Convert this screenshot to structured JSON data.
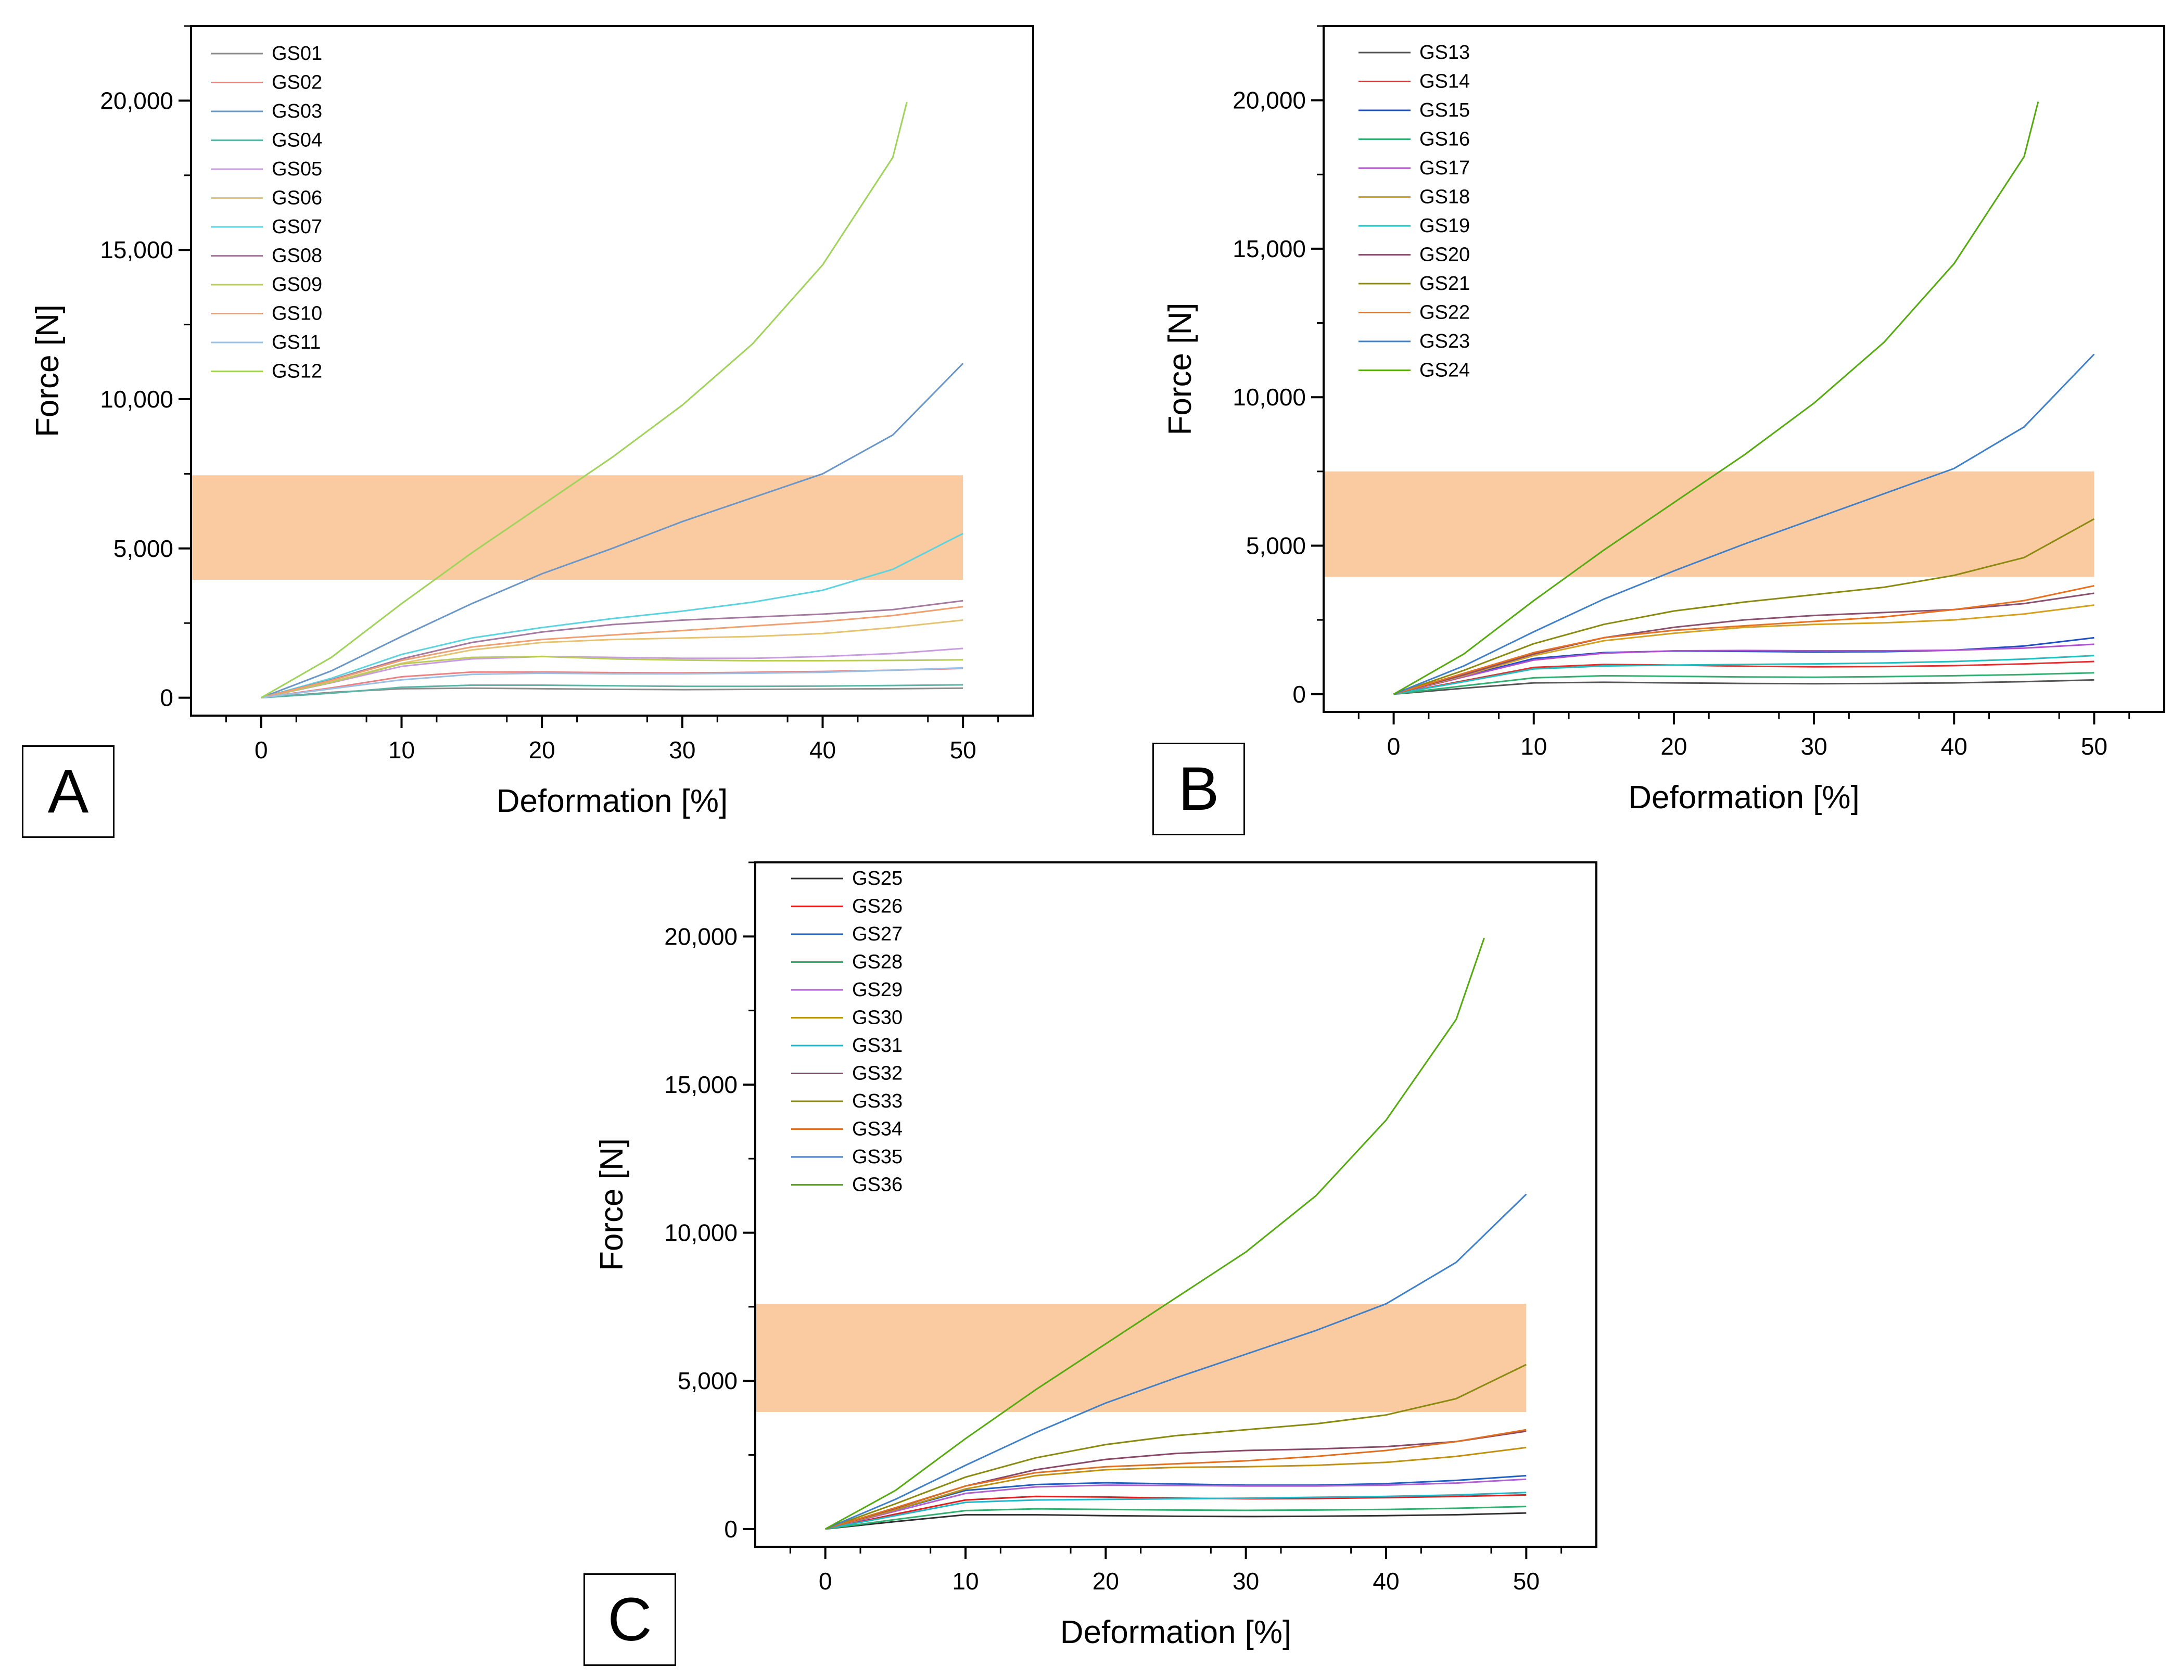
{
  "figure": {
    "band_color": "#f9c18f",
    "panels": [
      {
        "letter": "A"
      },
      {
        "letter": "B"
      },
      {
        "letter": "C"
      }
    ]
  },
  "chart_data": [
    {
      "type": "line",
      "panel": "A",
      "title": "",
      "xlabel": "Deformation [%]",
      "ylabel": "Force [N]",
      "xlim": [
        -5,
        55
      ],
      "ylim": [
        -600,
        22500
      ],
      "xticks": [
        0,
        10,
        20,
        30,
        40,
        50
      ],
      "xtick_labels": [
        "0",
        "10",
        "20",
        "30",
        "40",
        "50"
      ],
      "yticks": [
        0,
        5000,
        10000,
        15000,
        20000
      ],
      "ytick_labels": [
        "0",
        "5,000",
        "10,000",
        "15,000",
        "20,000"
      ],
      "grid": false,
      "legend_position": "top-left",
      "band": {
        "x": [
          -5,
          50
        ],
        "y": [
          3950,
          7450
        ],
        "color": "#f9c18f"
      },
      "x": [
        0,
        5,
        10,
        15,
        20,
        25,
        30,
        35,
        40,
        45,
        50
      ],
      "series": [
        {
          "name": "GS01",
          "color": "#8c8c8c",
          "values": [
            0,
            180,
            300,
            320,
            300,
            280,
            270,
            280,
            290,
            300,
            320
          ]
        },
        {
          "name": "GS02",
          "color": "#f08080",
          "values": [
            0,
            330,
            700,
            860,
            860,
            840,
            830,
            850,
            880,
            920,
            980
          ]
        },
        {
          "name": "GS03",
          "color": "#6a96c8",
          "values": [
            0,
            900,
            2050,
            3150,
            4150,
            5000,
            5900,
            6700,
            7500,
            8800,
            11200
          ]
        },
        {
          "name": "GS04",
          "color": "#5bb4a8",
          "values": [
            0,
            150,
            350,
            420,
            420,
            400,
            380,
            380,
            390,
            410,
            430
          ]
        },
        {
          "name": "GS05",
          "color": "#c99be0",
          "values": [
            0,
            500,
            1050,
            1300,
            1380,
            1350,
            1320,
            1320,
            1380,
            1480,
            1650
          ]
        },
        {
          "name": "GS06",
          "color": "#e6c372",
          "values": [
            0,
            530,
            1150,
            1600,
            1850,
            1950,
            2000,
            2050,
            2150,
            2350,
            2600
          ]
        },
        {
          "name": "GS07",
          "color": "#5cd4e0",
          "values": [
            0,
            650,
            1450,
            2000,
            2350,
            2650,
            2900,
            3200,
            3600,
            4300,
            5500
          ]
        },
        {
          "name": "GS08",
          "color": "#a57aa0",
          "values": [
            0,
            600,
            1300,
            1850,
            2200,
            2450,
            2600,
            2700,
            2800,
            2950,
            3250
          ]
        },
        {
          "name": "GS09",
          "color": "#b9cc5a",
          "values": [
            0,
            520,
            1130,
            1350,
            1380,
            1300,
            1260,
            1240,
            1240,
            1250,
            1270
          ]
        },
        {
          "name": "GS10",
          "color": "#f0a070",
          "values": [
            0,
            580,
            1250,
            1700,
            1950,
            2100,
            2250,
            2400,
            2550,
            2750,
            3050
          ]
        },
        {
          "name": "GS11",
          "color": "#9ac0e4",
          "values": [
            0,
            300,
            600,
            780,
            820,
            800,
            800,
            820,
            850,
            920,
            1000
          ]
        },
        {
          "name": "GS12",
          "color": "#9fd35a",
          "values": [
            0,
            1350,
            3150,
            4850,
            6450,
            8050,
            9800,
            11850,
            14500,
            18100,
            null
          ]
        }
      ]
    },
    {
      "type": "line",
      "panel": "B",
      "title": "",
      "xlabel": "Deformation [%]",
      "ylabel": "Force [N]",
      "xlim": [
        -5,
        55
      ],
      "ylim": [
        -600,
        22500
      ],
      "xticks": [
        0,
        10,
        20,
        30,
        40,
        50
      ],
      "xtick_labels": [
        "0",
        "10",
        "20",
        "30",
        "40",
        "50"
      ],
      "yticks": [
        0,
        5000,
        10000,
        15000,
        20000
      ],
      "ytick_labels": [
        "0",
        "5,000",
        "10,000",
        "15,000",
        "20,000"
      ],
      "grid": false,
      "legend_position": "top-left",
      "band": {
        "x": [
          -5,
          50
        ],
        "y": [
          3950,
          7500
        ],
        "color": "#f9c18f"
      },
      "x": [
        0,
        5,
        10,
        15,
        20,
        25,
        30,
        35,
        40,
        45,
        50
      ],
      "series": [
        {
          "name": "GS13",
          "color": "#555555",
          "values": [
            0,
            200,
            380,
            400,
            380,
            360,
            350,
            360,
            380,
            420,
            480
          ]
        },
        {
          "name": "GS14",
          "color": "#e03030",
          "values": [
            0,
            450,
            900,
            1000,
            980,
            940,
            920,
            930,
            960,
            1020,
            1100
          ]
        },
        {
          "name": "GS15",
          "color": "#2050c0",
          "values": [
            0,
            600,
            1200,
            1400,
            1450,
            1440,
            1420,
            1430,
            1480,
            1620,
            1900
          ]
        },
        {
          "name": "GS16",
          "color": "#30b070",
          "values": [
            0,
            280,
            550,
            620,
            600,
            580,
            570,
            590,
            620,
            660,
            720
          ]
        },
        {
          "name": "GS17",
          "color": "#b050d0",
          "values": [
            0,
            580,
            1150,
            1380,
            1460,
            1470,
            1460,
            1460,
            1480,
            1550,
            1680
          ]
        },
        {
          "name": "GS18",
          "color": "#d4a020",
          "values": [
            0,
            620,
            1300,
            1800,
            2050,
            2250,
            2350,
            2400,
            2500,
            2700,
            3000
          ]
        },
        {
          "name": "GS19",
          "color": "#20c0c0",
          "values": [
            0,
            420,
            850,
            950,
            980,
            1000,
            1020,
            1050,
            1100,
            1180,
            1300
          ]
        },
        {
          "name": "GS20",
          "color": "#8a5070",
          "values": [
            0,
            650,
            1350,
            1900,
            2250,
            2500,
            2650,
            2750,
            2850,
            3050,
            3400
          ]
        },
        {
          "name": "GS21",
          "color": "#8a8a10",
          "values": [
            0,
            800,
            1700,
            2350,
            2800,
            3100,
            3350,
            3600,
            4000,
            4600,
            5900
          ]
        },
        {
          "name": "GS22",
          "color": "#e87020",
          "values": [
            0,
            700,
            1400,
            1900,
            2150,
            2300,
            2450,
            2600,
            2850,
            3150,
            3650
          ]
        },
        {
          "name": "GS23",
          "color": "#4080c8",
          "values": [
            0,
            950,
            2100,
            3200,
            4150,
            5050,
            5900,
            6750,
            7600,
            9000,
            11450
          ]
        },
        {
          "name": "GS24",
          "color": "#55aa10",
          "values": [
            0,
            1350,
            3150,
            4850,
            6450,
            8050,
            9800,
            11850,
            14500,
            18100,
            null
          ]
        }
      ]
    },
    {
      "type": "line",
      "panel": "C",
      "title": "",
      "xlabel": "Deformation [%]",
      "ylabel": "Force [N]",
      "xlim": [
        -5,
        55
      ],
      "ylim": [
        -600,
        22500
      ],
      "xticks": [
        0,
        10,
        20,
        30,
        40,
        50
      ],
      "xtick_labels": [
        "0",
        "10",
        "20",
        "30",
        "40",
        "50"
      ],
      "yticks": [
        0,
        5000,
        10000,
        15000,
        20000
      ],
      "ytick_labels": [
        "0",
        "5,000",
        "10,000",
        "15,000",
        "20,000"
      ],
      "grid": false,
      "legend_position": "top-left",
      "band": {
        "x": [
          -5,
          50
        ],
        "y": [
          3950,
          7600
        ],
        "color": "#f9c18f"
      },
      "x": [
        0,
        5,
        10,
        15,
        20,
        25,
        30,
        35,
        40,
        45,
        50
      ],
      "series": [
        {
          "name": "GS25",
          "color": "#303030",
          "values": [
            0,
            250,
            480,
            480,
            450,
            430,
            420,
            430,
            450,
            480,
            540
          ]
        },
        {
          "name": "GS26",
          "color": "#e02020",
          "values": [
            0,
            500,
            980,
            1100,
            1080,
            1040,
            1020,
            1030,
            1060,
            1100,
            1150
          ]
        },
        {
          "name": "GS27",
          "color": "#2060c0",
          "values": [
            0,
            650,
            1300,
            1500,
            1560,
            1520,
            1480,
            1480,
            1530,
            1640,
            1800
          ]
        },
        {
          "name": "GS28",
          "color": "#30b070",
          "values": [
            0,
            320,
            620,
            680,
            660,
            640,
            630,
            640,
            660,
            700,
            760
          ]
        },
        {
          "name": "GS29",
          "color": "#b060d0",
          "values": [
            0,
            600,
            1200,
            1420,
            1480,
            1470,
            1450,
            1450,
            1480,
            1550,
            1680
          ]
        },
        {
          "name": "GS30",
          "color": "#c09010",
          "values": [
            0,
            650,
            1350,
            1800,
            2000,
            2080,
            2100,
            2150,
            2250,
            2450,
            2750
          ]
        },
        {
          "name": "GS31",
          "color": "#20b8c8",
          "values": [
            0,
            450,
            900,
            980,
            1000,
            1020,
            1040,
            1070,
            1100,
            1150,
            1230
          ]
        },
        {
          "name": "GS32",
          "color": "#8a4868",
          "values": [
            0,
            700,
            1450,
            2000,
            2350,
            2550,
            2650,
            2700,
            2780,
            2950,
            3300
          ]
        },
        {
          "name": "GS33",
          "color": "#8a8a10",
          "values": [
            0,
            850,
            1750,
            2400,
            2850,
            3150,
            3350,
            3550,
            3850,
            4400,
            5550
          ]
        },
        {
          "name": "GS34",
          "color": "#e07020",
          "values": [
            0,
            720,
            1450,
            1900,
            2100,
            2200,
            2300,
            2450,
            2650,
            2950,
            3350
          ]
        },
        {
          "name": "GS35",
          "color": "#4080c8",
          "values": [
            0,
            1000,
            2150,
            3250,
            4250,
            5100,
            5900,
            6700,
            7600,
            9000,
            11300
          ]
        },
        {
          "name": "GS36",
          "color": "#55aa10",
          "values": [
            0,
            1300,
            3050,
            4700,
            6250,
            7800,
            9350,
            11250,
            13800,
            17200,
            null
          ]
        }
      ]
    }
  ]
}
